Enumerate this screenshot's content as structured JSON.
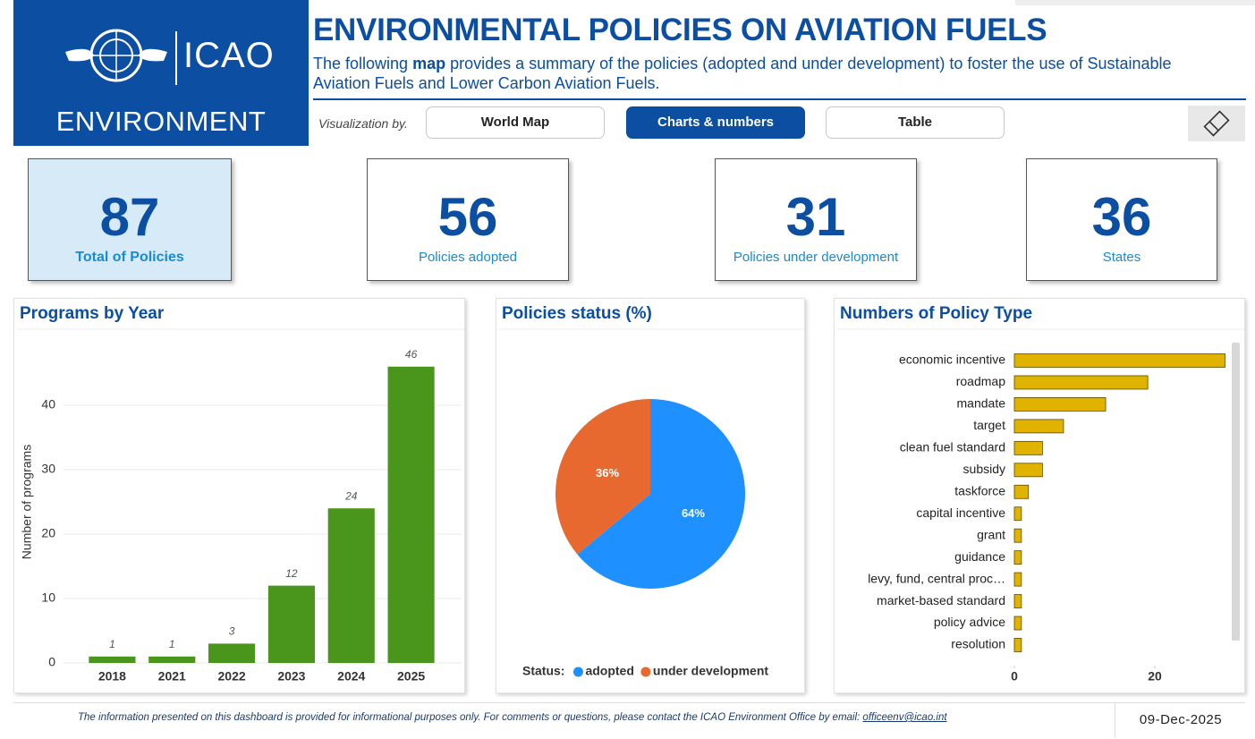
{
  "header": {
    "logo_text": "ICAO",
    "logo_subtitle": "ENVIRONMENT",
    "title": "ENVIRONMENTAL POLICIES ON AVIATION FUELS",
    "subtitle": [
      "The following ",
      "map",
      " provides a summary of the policies (adopted and under development) to foster the use of Sustainable Aviation Fuels and Lower Carbon Aviation Fuels."
    ]
  },
  "visualization": {
    "label": "Visualization by.",
    "buttons": [
      "World Map",
      "Charts & numbers",
      "Table"
    ],
    "active": 1
  },
  "kpis": [
    {
      "value": 87,
      "label": "Total of Policies"
    },
    {
      "value": 56,
      "label": "Policies adopted"
    },
    {
      "value": 31,
      "label": "Policies under development"
    },
    {
      "value": 36,
      "label": "States"
    }
  ],
  "chart_data": [
    {
      "type": "bar",
      "title": "Programs by Year",
      "categories": [
        "2018",
        "2021",
        "2022",
        "2023",
        "2024",
        "2025"
      ],
      "values": [
        1,
        1,
        3,
        12,
        24,
        46
      ],
      "color": "#4a961c",
      "ylabel": "Number of programs",
      "ylim": [
        0,
        50
      ],
      "yticks": [
        0,
        10,
        20,
        30,
        40
      ],
      "grid": true
    },
    {
      "type": "pie",
      "title": "Policies status (%)",
      "categories": [
        "adopted",
        "under development"
      ],
      "values": [
        64,
        36
      ],
      "value_labels": [
        "64%",
        "36%"
      ],
      "colors": [
        "#1e90ff",
        "#e8692f"
      ],
      "legend_title": "Status:"
    },
    {
      "type": "barh",
      "title": "Numbers of Policy Type",
      "categories": [
        "economic incentive",
        "roadmap",
        "mandate",
        "target",
        "clean fuel standard",
        "subsidy",
        "taskforce",
        "capital incentive",
        "grant",
        "guidance",
        "levy, fund, central proc…",
        "market-based standard",
        "policy advice",
        "resolution"
      ],
      "values": [
        30,
        19,
        13,
        7,
        4,
        4,
        2,
        1,
        1,
        1,
        1,
        1,
        1,
        1
      ],
      "color": "#dfb300",
      "xlim": [
        0,
        30
      ],
      "xticks": [
        0,
        20
      ]
    }
  ],
  "footer": {
    "text": "The information presented on this dashboard is provided for informational purposes only. For comments or questions, please contact the ICAO Environment Office by email: ",
    "email": "officeenv@icao.int",
    "date": "09-Dec-2025"
  }
}
